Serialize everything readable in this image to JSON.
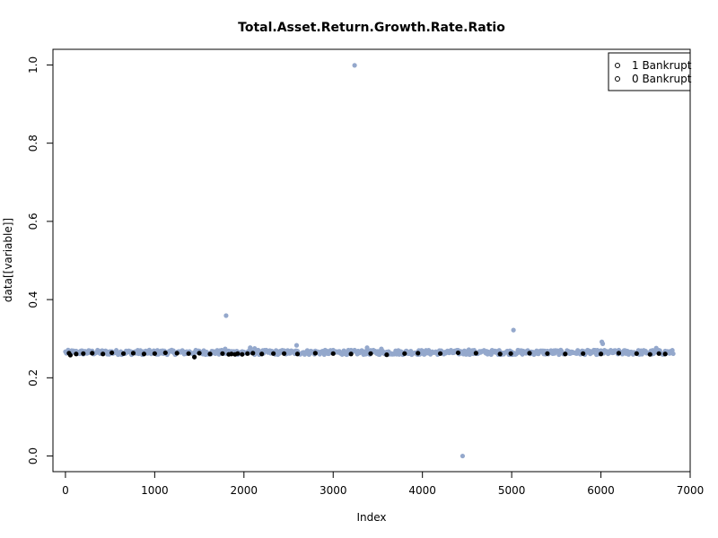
{
  "chart_data": {
    "type": "scatter",
    "title": "Total.Asset.Return.Growth.Rate.Ratio",
    "xlabel": "Index",
    "ylabel": "data[[variable]]",
    "xlim": [
      -140,
      7000
    ],
    "ylim": [
      -0.04,
      1.04
    ],
    "x_ticks": [
      0,
      1000,
      2000,
      3000,
      4000,
      5000,
      6000,
      7000
    ],
    "x_tick_labels": [
      "0",
      "1000",
      "2000",
      "3000",
      "4000",
      "5000",
      "6000",
      "7000"
    ],
    "y_ticks": [
      0.0,
      0.2,
      0.4,
      0.6,
      0.8,
      1.0
    ],
    "y_tick_labels": [
      "0.0",
      "0.2",
      "0.4",
      "0.6",
      "0.8",
      "1.0"
    ],
    "grid": false,
    "legend_position": "top-right",
    "legend": [
      {
        "label": "1 Bankrupt",
        "marker": "o"
      },
      {
        "label": "0 Bankrupt",
        "marker": "o"
      }
    ],
    "colors": {
      "bankrupt_1": "#000000",
      "bankrupt_0": "#94a8cc"
    },
    "series": [
      {
        "class": "1",
        "color": "#000000",
        "x": [
          40,
          55,
          120,
          200,
          300,
          420,
          520,
          650,
          760,
          880,
          1000,
          1120,
          1250,
          1380,
          1445,
          1500,
          1620,
          1760,
          1830,
          1860,
          1900,
          1930,
          1980,
          2040,
          2100,
          2200,
          2330,
          2450,
          2600,
          2800,
          3000,
          3200,
          3420,
          3600,
          3800,
          3950,
          4200,
          4400,
          4600,
          4870,
          4990,
          5200,
          5400,
          5600,
          5800,
          6000,
          6200,
          6400,
          6550,
          6650,
          6720
        ],
        "y": [
          0.263,
          0.258,
          0.261,
          0.262,
          0.263,
          0.261,
          0.264,
          0.262,
          0.263,
          0.261,
          0.262,
          0.264,
          0.263,
          0.262,
          0.253,
          0.263,
          0.261,
          0.262,
          0.26,
          0.261,
          0.26,
          0.262,
          0.26,
          0.262,
          0.263,
          0.261,
          0.262,
          0.262,
          0.261,
          0.263,
          0.262,
          0.261,
          0.262,
          0.259,
          0.262,
          0.263,
          0.262,
          0.264,
          0.263,
          0.261,
          0.262,
          0.263,
          0.262,
          0.261,
          0.262,
          0.261,
          0.263,
          0.262,
          0.26,
          0.262,
          0.261
        ]
      },
      {
        "class": "0",
        "color": "#94a8cc",
        "outliers": {
          "x": [
            1800,
            3240,
            4450,
            5020,
            6010,
            6020,
            2590,
            3380,
            6620,
            2070,
            2120,
            1790,
            3540,
            4520
          ],
          "y": [
            0.359,
            0.999,
            0.0,
            0.322,
            0.292,
            0.287,
            0.283,
            0.277,
            0.276,
            0.277,
            0.275,
            0.274,
            0.274,
            0.272
          ]
        },
        "band": {
          "x_range": [
            0,
            6818
          ],
          "y_center": 0.265,
          "y_spread": 0.006
        }
      }
    ]
  }
}
